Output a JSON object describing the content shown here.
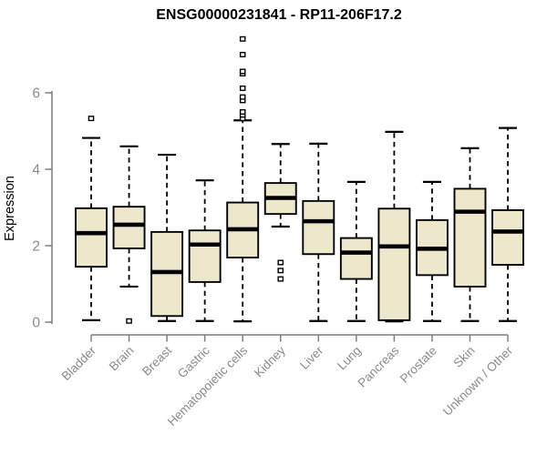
{
  "colors": {
    "box_fill": "#EDE8CC",
    "box_stroke": "#000000",
    "median_stroke": "#000000",
    "whisker_stroke": "#000000",
    "outlier_stroke": "#000000",
    "outlier_fill": "#FFFFFF",
    "axis_line": "#7F7F7F",
    "axis_text": "#8A8A8A",
    "title_text": "#000000",
    "background": "#FFFFFF"
  },
  "chart_data": {
    "type": "boxplot",
    "title": "ENSG00000231841 - RP11-206F17.2",
    "xlabel": "",
    "ylabel": "Expression",
    "ylim": [
      0,
      6
    ],
    "yticks": [
      0,
      2,
      4,
      6
    ],
    "grid": false,
    "legend": false,
    "x_tick_rotation_deg": 45,
    "categories": [
      "Bladder",
      "Brain",
      "Breast",
      "Gastric",
      "Hematopoietic cells",
      "Kidney",
      "Liver",
      "Lung",
      "Pancreas",
      "Prostate",
      "Skin",
      "Unknown / Other"
    ],
    "series": [
      {
        "name": "Bladder",
        "whisker_low": 0.05,
        "q1": 1.45,
        "median": 2.33,
        "q3": 2.98,
        "whisker_high": 4.82,
        "outliers": [
          5.33
        ]
      },
      {
        "name": "Brain",
        "whisker_low": 0.93,
        "q1": 1.93,
        "median": 2.55,
        "q3": 3.02,
        "whisker_high": 4.6,
        "outliers": [
          0.03
        ]
      },
      {
        "name": "Breast",
        "whisker_low": 0.03,
        "q1": 0.16,
        "median": 1.31,
        "q3": 2.36,
        "whisker_high": 4.38,
        "outliers": []
      },
      {
        "name": "Gastric",
        "whisker_low": 0.03,
        "q1": 1.05,
        "median": 2.03,
        "q3": 2.4,
        "whisker_high": 3.71,
        "outliers": []
      },
      {
        "name": "Hematopoietic cells",
        "whisker_low": 0.02,
        "q1": 1.69,
        "median": 2.43,
        "q3": 3.13,
        "whisker_high": 5.28,
        "outliers": [
          5.33,
          5.42,
          5.5,
          5.8,
          5.89,
          6.12,
          6.5,
          6.56,
          7.0,
          7.41
        ]
      },
      {
        "name": "Kidney",
        "whisker_low": 2.5,
        "q1": 2.83,
        "median": 3.25,
        "q3": 3.64,
        "whisker_high": 4.66,
        "outliers": [
          1.56,
          1.35,
          1.13
        ]
      },
      {
        "name": "Liver",
        "whisker_low": 0.03,
        "q1": 1.78,
        "median": 2.64,
        "q3": 3.17,
        "whisker_high": 4.67,
        "outliers": []
      },
      {
        "name": "Lung",
        "whisker_low": 0.03,
        "q1": 1.13,
        "median": 1.82,
        "q3": 2.2,
        "whisker_high": 3.67,
        "outliers": []
      },
      {
        "name": "Pancreas",
        "whisker_low": 0.02,
        "q1": 0.05,
        "median": 1.98,
        "q3": 2.97,
        "whisker_high": 4.98,
        "outliers": []
      },
      {
        "name": "Prostate",
        "whisker_low": 0.03,
        "q1": 1.23,
        "median": 1.92,
        "q3": 2.67,
        "whisker_high": 3.67,
        "outliers": []
      },
      {
        "name": "Skin",
        "whisker_low": 0.03,
        "q1": 0.93,
        "median": 2.89,
        "q3": 3.49,
        "whisker_high": 4.55,
        "outliers": []
      },
      {
        "name": "Unknown / Other",
        "whisker_low": 0.03,
        "q1": 1.5,
        "median": 2.37,
        "q3": 2.93,
        "whisker_high": 5.08,
        "outliers": []
      }
    ]
  }
}
